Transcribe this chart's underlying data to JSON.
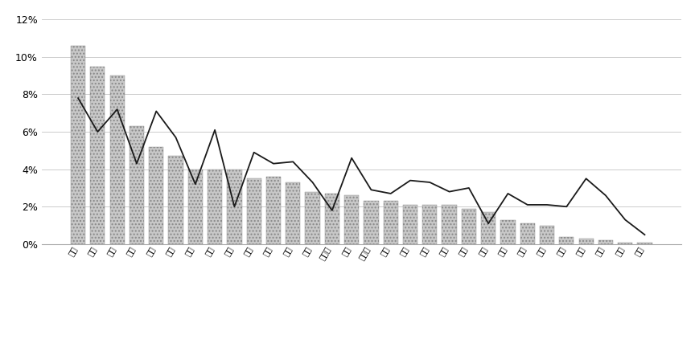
{
  "categories": [
    "广东",
    "江苏",
    "山东",
    "浙江",
    "河南",
    "河北",
    "辽宁",
    "四川",
    "上海",
    "湖南",
    "湖北",
    "福建",
    "安徽",
    "内蒙古",
    "北京",
    "黑龙江",
    "陕西",
    "广西",
    "江西",
    "山西",
    "吉林",
    "重庆",
    "云南",
    "新疆",
    "甘肃",
    "贵州",
    "天津",
    "海南",
    "宁夏",
    "西藏"
  ],
  "bar_values": [
    0.106,
    0.095,
    0.09,
    0.063,
    0.052,
    0.047,
    0.04,
    0.04,
    0.04,
    0.035,
    0.036,
    0.033,
    0.028,
    0.027,
    0.026,
    0.023,
    0.023,
    0.021,
    0.021,
    0.021,
    0.019,
    0.017,
    0.013,
    0.011,
    0.01,
    0.004,
    0.003,
    0.002,
    0.001,
    0.001
  ],
  "line_values": [
    0.078,
    0.06,
    0.072,
    0.043,
    0.071,
    0.057,
    0.032,
    0.061,
    0.02,
    0.049,
    0.043,
    0.044,
    0.033,
    0.018,
    0.046,
    0.029,
    0.027,
    0.034,
    0.033,
    0.028,
    0.03,
    0.011,
    0.027,
    0.021,
    0.021,
    0.02,
    0.035,
    0.026,
    0.013,
    0.005
  ],
  "bar_color": "#c8c8c8",
  "line_color": "#1a1a1a",
  "background_color": "#ffffff",
  "ytick_labels": [
    "0%",
    "2%",
    "4%",
    "6%",
    "8%",
    "10%",
    "12%"
  ],
  "grid_color": "#cccccc",
  "font_size": 9,
  "xlabel_fontsize": 7,
  "label_rotation": 60
}
